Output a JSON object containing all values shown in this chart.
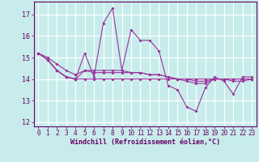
{
  "xlabel": "Windchill (Refroidissement éolien,°C)",
  "background_color": "#c8ecec",
  "grid_color": "#ffffff",
  "line_color": "#993399",
  "xlim": [
    -0.5,
    23.5
  ],
  "ylim": [
    11.8,
    17.6
  ],
  "yticks": [
    12,
    13,
    14,
    15,
    16,
    17
  ],
  "xticks": [
    0,
    1,
    2,
    3,
    4,
    5,
    6,
    7,
    8,
    9,
    10,
    11,
    12,
    13,
    14,
    15,
    16,
    17,
    18,
    19,
    20,
    21,
    22,
    23
  ],
  "series": [
    [
      15.2,
      14.9,
      14.4,
      14.1,
      14.0,
      15.2,
      14.1,
      16.6,
      17.3,
      14.4,
      16.3,
      15.8,
      15.8,
      15.3,
      13.7,
      13.5,
      12.7,
      12.5,
      13.6,
      14.1,
      13.9,
      13.3,
      14.1,
      14.1
    ],
    [
      15.2,
      14.9,
      14.4,
      14.1,
      14.0,
      14.4,
      14.4,
      14.4,
      14.4,
      14.4,
      14.3,
      14.3,
      14.2,
      14.2,
      14.1,
      14.0,
      14.0,
      13.9,
      13.9,
      14.0,
      14.0,
      14.0,
      14.0,
      14.0
    ],
    [
      15.2,
      14.9,
      14.4,
      14.1,
      14.0,
      14.0,
      14.0,
      14.0,
      14.0,
      14.0,
      14.0,
      14.0,
      14.0,
      14.0,
      14.0,
      14.0,
      14.0,
      14.0,
      14.0,
      14.0,
      14.0,
      14.0,
      14.0,
      14.0
    ],
    [
      15.2,
      15.0,
      14.7,
      14.4,
      14.2,
      14.4,
      14.3,
      14.3,
      14.3,
      14.3,
      14.3,
      14.3,
      14.2,
      14.2,
      14.1,
      14.0,
      13.9,
      13.8,
      13.8,
      14.0,
      14.0,
      13.9,
      13.9,
      14.0
    ]
  ]
}
